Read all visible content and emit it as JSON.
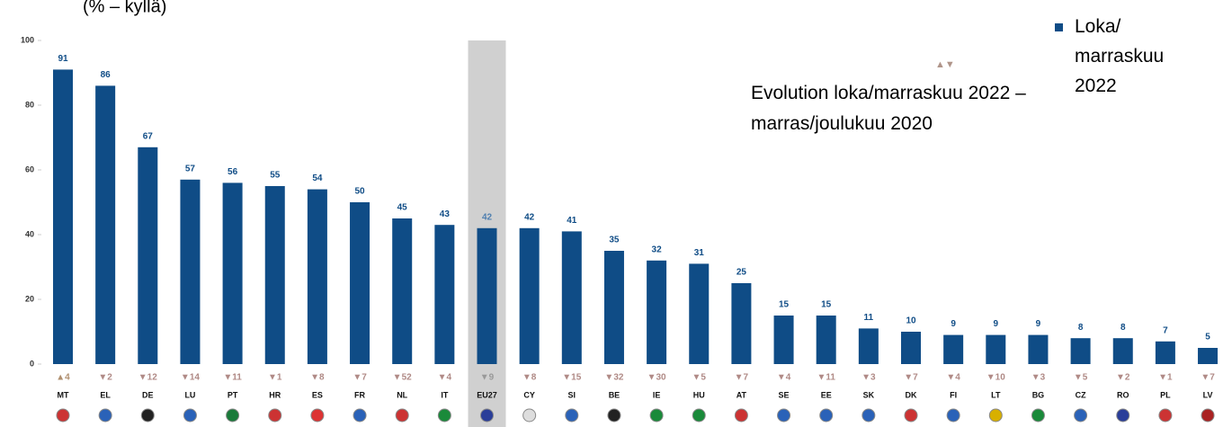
{
  "chart_data": {
    "type": "bar",
    "title": "(% – kyllä)",
    "categories": [
      "MT",
      "EL",
      "DE",
      "LU",
      "PT",
      "HR",
      "ES",
      "FR",
      "NL",
      "IT",
      "EU27",
      "CY",
      "SI",
      "BE",
      "IE",
      "HU",
      "AT",
      "SE",
      "EE",
      "SK",
      "DK",
      "FI",
      "LT",
      "BG",
      "CZ",
      "RO",
      "PL",
      "LV"
    ],
    "series": [
      {
        "name": "Loka/ marraskuu 2022",
        "color": "#0f4c86",
        "values": [
          91,
          86,
          67,
          57,
          56,
          55,
          54,
          50,
          45,
          43,
          42,
          42,
          41,
          35,
          32,
          31,
          25,
          15,
          15,
          11,
          10,
          9,
          9,
          9,
          8,
          8,
          7,
          5
        ]
      }
    ],
    "evolution_title": "Evolution loka/marraskuu 2022 – marras/joulukuu 2020",
    "evolution_symbol": "▲▼",
    "evolution": [
      "▲4",
      "▼2",
      "▼12",
      "▼14",
      "▼11",
      "▼1",
      "▼8",
      "▼7",
      "▼52",
      "▼4",
      "▼9",
      "▼8",
      "▼15",
      "▼32",
      "▼30",
      "▼5",
      "▼7",
      "▼4",
      "▼11",
      "▼3",
      "▼7",
      "▼4",
      "▼10",
      "▼3",
      "▼5",
      "▼2",
      "▼1",
      "▼7"
    ],
    "highlight": "EU27",
    "ylim": [
      0,
      100
    ],
    "yticks": [
      0,
      20,
      40,
      60,
      80,
      100
    ],
    "grid": false
  }
}
